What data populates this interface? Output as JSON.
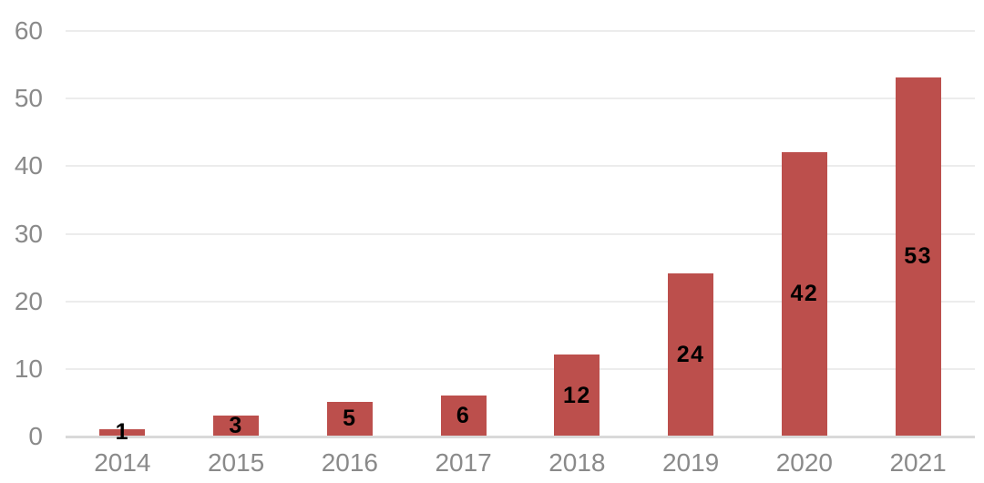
{
  "chart_data": {
    "type": "bar",
    "title": "",
    "xlabel": "",
    "ylabel": "",
    "categories": [
      "2014",
      "2015",
      "2016",
      "2017",
      "2018",
      "2019",
      "2020",
      "2021"
    ],
    "values": [
      1,
      3,
      5,
      6,
      12,
      24,
      42,
      53
    ],
    "data_labels": [
      "1",
      "3",
      "5",
      "6",
      "12",
      "24",
      "42",
      "53"
    ],
    "ylim": [
      0,
      60
    ],
    "yticks": [
      0,
      10,
      20,
      30,
      40,
      50,
      60
    ],
    "grid": true,
    "legend": false,
    "colors": {
      "bar": "#bc4f4c",
      "gridline": "#ececec",
      "axis_line": "#d9d9d9",
      "tick_label": "#8a8a8a",
      "value_label": "#000000",
      "background": "#ffffff"
    }
  }
}
